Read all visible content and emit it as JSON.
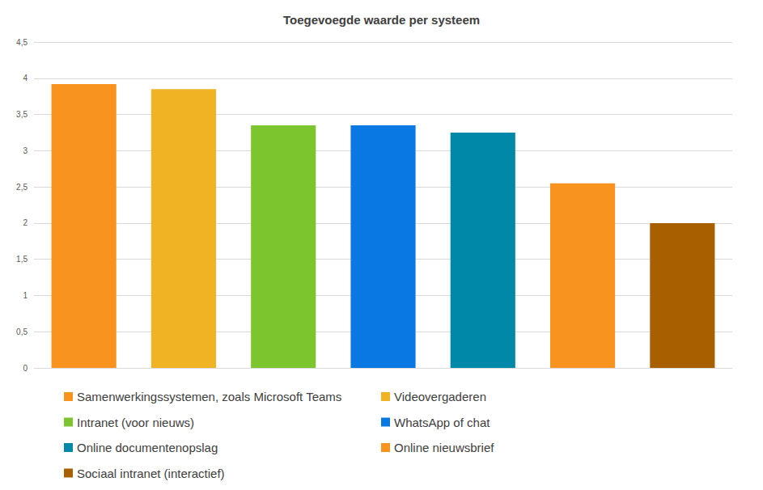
{
  "chart_data": {
    "type": "bar",
    "title": "Toegevoegde waarde per systeem",
    "categories": [
      "Samenwerkingssystemen, zoals Microsoft Teams",
      "Videovergaderen",
      "Intranet (voor nieuws)",
      "WhatsApp of chat",
      "Online documentenopslag",
      "Online nieuwsbrief",
      "Sociaal intranet (interactief)"
    ],
    "values": [
      3.92,
      3.85,
      3.35,
      3.35,
      3.25,
      2.55,
      2.0
    ],
    "colors": [
      "#f7931e",
      "#f0b323",
      "#7dc52e",
      "#0a78e2",
      "#0088a8",
      "#f7931e",
      "#a85f00"
    ],
    "ylim": [
      0,
      4.5
    ],
    "yticks": [
      0,
      {
        "value": 0.5,
        "label": "0,5"
      },
      1,
      {
        "value": 1.5,
        "label": "1,5"
      },
      2,
      {
        "value": 2.5,
        "label": "2,5"
      },
      3,
      {
        "value": 3.5,
        "label": "3,5"
      },
      4,
      {
        "value": 4.5,
        "label": "4,5"
      }
    ],
    "grid": true,
    "legend": "bottom",
    "tick_labels": "y"
  }
}
